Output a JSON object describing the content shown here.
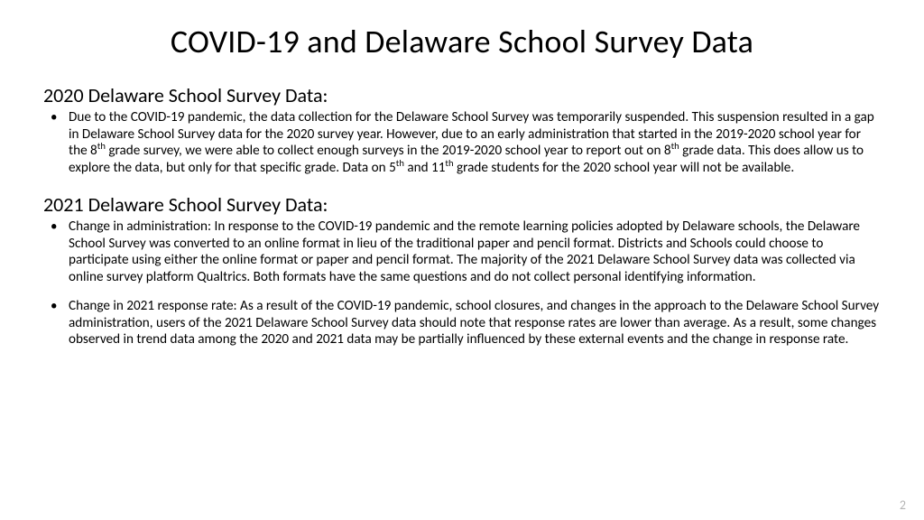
{
  "title": "COVID-19 and Delaware School Survey Data",
  "section1": {
    "heading": "2020 Delaware School Survey Data:",
    "bullet": {
      "pre1": "Due to the COVID-19 pandemic, the data collection for the Delaware School Survey was temporarily suspended. This suspension resulted in a gap in Delaware School Survey data for the 2020 survey year. However, due to an early administration that started in the 2019-2020 school year for the 8",
      "sup1": "th",
      "mid1": " grade survey, we were able to collect enough surveys in the 2019-2020 school year to report out on 8",
      "sup2": "th",
      "mid2": " grade data. This does allow us to explore the data, but only for that specific grade. Data on 5",
      "sup3": "th",
      "mid3": " and 11",
      "sup4": "th",
      "post": " grade students for the 2020 school year will not be available."
    }
  },
  "section2": {
    "heading": "2021 Delaware School Survey Data:",
    "bullet1": "Change in administration: In response to the COVID-19 pandemic and the remote learning policies adopted by Delaware schools, the Delaware School Survey was converted to an online format in lieu of the traditional paper and pencil format. Districts and Schools could choose to participate using either the online format or paper and pencil format. The majority of the 2021 Delaware School Survey data was collected via online survey platform Qualtrics. Both formats have the same questions and do not collect personal identifying information.",
    "bullet2": "Change in 2021 response rate: As a result of the COVID-19 pandemic, school closures, and changes in the approach to the Delaware School Survey administration, users of the 2021 Delaware School Survey data should note that response rates are lower than average.  As a result, some changes observed in trend data among the 2020 and 2021 data may be partially influenced by these external events and the change in response rate."
  },
  "page_number": "2",
  "colors": {
    "background": "#ffffff",
    "text": "#000000",
    "page_number": "#b5b5b5"
  },
  "typography": {
    "title_fontsize": 36,
    "heading_fontsize": 22,
    "body_fontsize": 15.2,
    "font_family": "Calibri"
  }
}
